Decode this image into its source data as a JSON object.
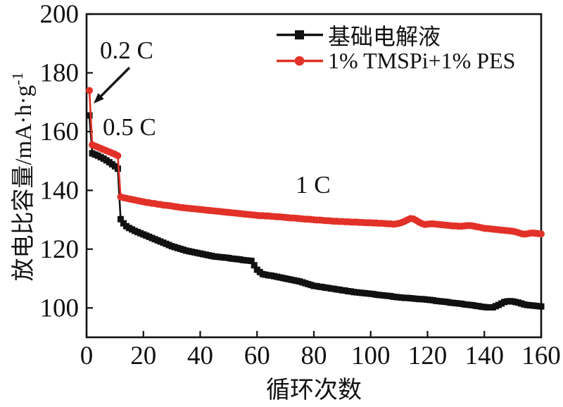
{
  "chart_data": {
    "type": "line",
    "title": "",
    "xlabel": "循环次数",
    "ylabel": "放电比容量/mA·h·g⁻¹",
    "ylabel_base": "放电比容量/mA·h·g",
    "ylabel_sup": "-1",
    "xlim": [
      0,
      160
    ],
    "ylim": [
      90,
      200
    ],
    "x_ticks": [
      0,
      20,
      40,
      60,
      80,
      100,
      120,
      140,
      160
    ],
    "y_ticks": [
      100,
      120,
      140,
      160,
      180,
      200
    ],
    "grid": false,
    "legend_position": "top-center-inside",
    "axis_color": "#111111",
    "annotations": [
      {
        "text": "0.2 C",
        "arrow": {
          "x1": 184,
          "y1": 96,
          "x2": 133,
          "y2": 147
        }
      },
      {
        "text": "0.5 C"
      },
      {
        "text": "1 C"
      }
    ],
    "series": [
      {
        "name": "基础电解液",
        "color": "#111111",
        "marker": "square",
        "x_start": 1,
        "x_step": 1,
        "values": [
          165.5,
          152.6,
          152.2,
          151.8,
          151.3,
          150.8,
          150.2,
          149.6,
          148.9,
          148.2,
          147.4,
          130.2,
          128.8,
          127.8,
          127.2,
          126.7,
          126.2,
          125.8,
          125.4,
          125.0,
          124.6,
          124.2,
          123.8,
          123.4,
          123.0,
          122.6,
          122.2,
          121.8,
          121.4,
          121.0,
          120.7,
          120.4,
          120.1,
          119.8,
          119.5,
          119.3,
          119.1,
          118.9,
          118.7,
          118.5,
          118.3,
          118.1,
          117.9,
          117.7,
          117.5,
          117.4,
          117.3,
          117.2,
          117.1,
          117.0,
          116.8,
          116.7,
          116.6,
          116.5,
          116.3,
          116.2,
          116.1,
          116.0,
          114.5,
          113.0,
          112.2,
          111.5,
          111.3,
          111.1,
          111.0,
          110.8,
          110.6,
          110.4,
          110.2,
          110.0,
          109.8,
          109.6,
          109.4,
          109.2,
          109.0,
          108.7,
          108.4,
          108.1,
          107.8,
          107.5,
          107.4,
          107.2,
          107.1,
          106.9,
          106.8,
          106.6,
          106.5,
          106.3,
          106.2,
          106.0,
          105.9,
          105.7,
          105.6,
          105.4,
          105.3,
          105.2,
          105.1,
          105.0,
          104.9,
          104.8,
          104.7,
          104.5,
          104.4,
          104.3,
          104.2,
          104.1,
          104.0,
          103.8,
          103.7,
          103.6,
          103.5,
          103.4,
          103.4,
          103.3,
          103.2,
          103.1,
          103.0,
          103.0,
          102.9,
          102.8,
          102.7,
          102.6,
          102.4,
          102.3,
          102.2,
          102.1,
          102.0,
          101.8,
          101.7,
          101.6,
          101.5,
          101.4,
          101.2,
          101.1,
          101.0,
          100.9,
          100.7,
          100.6,
          100.4,
          100.3,
          100.2,
          100.2,
          100.2,
          100.6,
          101.0,
          101.5,
          102.0,
          102.2,
          102.3,
          102.2,
          102.0,
          101.8,
          101.5,
          101.2,
          101.0,
          100.9,
          100.8,
          100.7,
          100.6,
          100.5
        ]
      },
      {
        "name": "1% TMSPi+1% PES",
        "color": "#e23128",
        "marker": "circle",
        "x_start": 1,
        "x_step": 1,
        "values": [
          174.0,
          155.5,
          155.1,
          154.7,
          154.3,
          153.9,
          153.5,
          153.1,
          152.7,
          152.3,
          151.8,
          137.8,
          137.5,
          137.3,
          137.1,
          136.9,
          136.7,
          136.5,
          136.3,
          136.1,
          135.9,
          135.8,
          135.6,
          135.5,
          135.3,
          135.2,
          135.0,
          134.9,
          134.8,
          134.7,
          134.5,
          134.4,
          134.2,
          134.1,
          134.0,
          133.9,
          133.8,
          133.7,
          133.6,
          133.5,
          133.4,
          133.3,
          133.2,
          133.1,
          133.0,
          132.9,
          132.8,
          132.7,
          132.6,
          132.5,
          132.4,
          132.3,
          132.2,
          132.1,
          132.0,
          131.9,
          131.8,
          131.7,
          131.6,
          131.5,
          131.4,
          131.4,
          131.3,
          131.3,
          131.2,
          131.1,
          131.0,
          131.0,
          130.9,
          130.8,
          130.7,
          130.6,
          130.6,
          130.5,
          130.4,
          130.3,
          130.2,
          130.2,
          130.1,
          130.0,
          129.9,
          129.9,
          129.8,
          129.7,
          129.7,
          129.6,
          129.5,
          129.5,
          129.4,
          129.4,
          129.3,
          129.3,
          129.2,
          129.2,
          129.2,
          129.1,
          129.1,
          129.0,
          129.0,
          129.0,
          128.9,
          128.9,
          128.8,
          128.8,
          128.7,
          128.6,
          128.6,
          128.5,
          128.6,
          128.8,
          129.1,
          129.5,
          130.0,
          130.4,
          130.3,
          129.8,
          129.2,
          128.7,
          128.4,
          128.5,
          128.6,
          128.6,
          128.5,
          128.4,
          128.3,
          128.2,
          128.1,
          128.0,
          127.9,
          127.9,
          127.8,
          127.8,
          127.9,
          128.0,
          128.0,
          127.9,
          127.7,
          127.5,
          127.3,
          127.1,
          127.0,
          126.9,
          126.8,
          126.7,
          126.6,
          126.5,
          126.4,
          126.3,
          126.2,
          126.1,
          125.9,
          125.6,
          125.3,
          125.1,
          125.2,
          125.4,
          125.5,
          125.4,
          125.3,
          125.2
        ]
      }
    ]
  }
}
